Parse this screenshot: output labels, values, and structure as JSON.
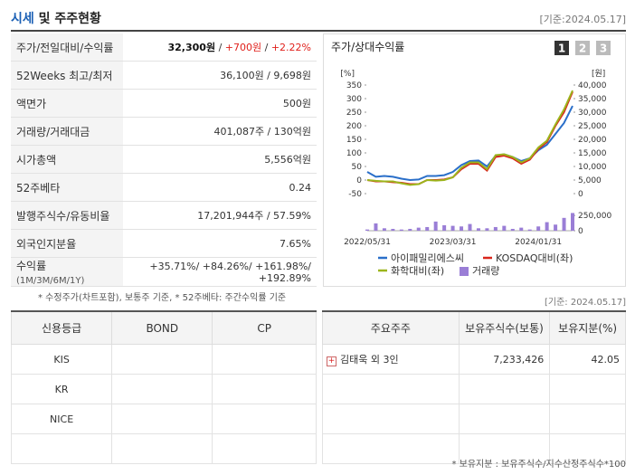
{
  "header": {
    "title": "시세",
    "title_rest": "및 주주현황",
    "date": "[기준:2024.05.17]"
  },
  "summary": {
    "rows": [
      {
        "label": "주가/전일대비/수익률",
        "value": [
          "32,300원",
          " / ",
          "+700원",
          " / ",
          "+2.22%"
        ]
      },
      {
        "label": "52Weeks 최고/최저",
        "value": "36,100원 / 9,698원"
      },
      {
        "label": "액면가",
        "value": "500원"
      },
      {
        "label": "거래량/거래대금",
        "value": "401,087주 / 130억원"
      },
      {
        "label": "시가총액",
        "value": "5,556억원"
      },
      {
        "label": "52주베타",
        "value": "0.24"
      },
      {
        "label": "발행주식수/유동비율",
        "value": "17,201,944주 / 57.59%"
      },
      {
        "label": "외국인지분율",
        "value": "7.65%"
      },
      {
        "label": "수익률",
        "label_note": "(1M/3M/6M/1Y)",
        "value": "+35.71%/ +84.26%/ +161.98%/ +192.89%"
      }
    ],
    "note": "* 수정주가(차트포함), 보통주 기준, * 52주베타: 주간수익률 기준"
  },
  "chart": {
    "type": "line",
    "title": "주가/상대수익률",
    "pages": [
      "1",
      "2",
      "3"
    ],
    "ylabel": "[%]",
    "y2label": "[원]",
    "categories": [
      "2022/05/31",
      null,
      null,
      null,
      null,
      null,
      null,
      null,
      null,
      null,
      "2023/03/31",
      null,
      null,
      null,
      null,
      null,
      null,
      null,
      null,
      null,
      "2024/01/31",
      null,
      null,
      null,
      null
    ],
    "ylim": [
      -50,
      350
    ],
    "yticks": [
      -50,
      0,
      50,
      100,
      150,
      200,
      250,
      300,
      350
    ],
    "y2lim": [
      0,
      40000
    ],
    "y2ticks": [
      0,
      {
        "value": 5000,
        "label": "5,000"
      },
      {
        "value": 10000,
        "label": "10,000"
      },
      {
        "value": 15000,
        "label": "15,000"
      },
      {
        "value": 20000,
        "label": "20,000"
      },
      {
        "value": 25000,
        "label": "25,000"
      },
      {
        "value": 30000,
        "label": "30,000"
      },
      {
        "value": 35000,
        "label": "35,000"
      },
      {
        "value": 40000,
        "label": "40,000"
      }
    ],
    "series": [
      {
        "name": "아이패밀리에스씨",
        "color": "#2a6fc9",
        "axis": "y2",
        "values": [
          8000,
          6200,
          6500,
          6200,
          5500,
          5000,
          5200,
          6500,
          6500,
          6800,
          8000,
          10500,
          12000,
          12200,
          10000,
          14000,
          14500,
          13500,
          12000,
          13000,
          16000,
          18000,
          22000,
          26000,
          32300
        ]
      },
      {
        "name": "KOSDAQ대비(좌)",
        "color": "#d9261c",
        "values": [
          0,
          -5,
          -5,
          -8,
          -10,
          -15,
          -15,
          0,
          0,
          2,
          10,
          40,
          60,
          60,
          35,
          85,
          90,
          80,
          60,
          75,
          115,
          140,
          200,
          250,
          325
        ]
      },
      {
        "name": "화학대비(좌)",
        "color": "#9cb51c",
        "values": [
          0,
          -3,
          -5,
          -5,
          -12,
          -18,
          -15,
          0,
          -2,
          0,
          10,
          45,
          65,
          65,
          40,
          92,
          95,
          85,
          65,
          80,
          120,
          145,
          205,
          260,
          330
        ]
      }
    ],
    "volume": {
      "name": "거래량",
      "color": "#9a7ed6",
      "ylim": [
        0,
        400000
      ],
      "yticks": [
        0,
        {
          "value": 250000,
          "label": "250,000"
        }
      ],
      "values": [
        20000,
        120000,
        40000,
        30000,
        20000,
        30000,
        50000,
        60000,
        150000,
        90000,
        80000,
        70000,
        110000,
        40000,
        40000,
        60000,
        80000,
        30000,
        50000,
        20000,
        70000,
        140000,
        100000,
        210000,
        290000
      ]
    }
  },
  "credit": {
    "headers": [
      "신용등급",
      "BOND",
      "CP"
    ],
    "rows": [
      "KIS",
      "KR",
      "NICE"
    ]
  },
  "holders": {
    "date": "[기준: 2024.05.17]",
    "headers": [
      "주요주주",
      "보유주식수(보통)",
      "보유지분(%)"
    ],
    "rows": [
      [
        "김태욱 외 3인",
        "7,233,426",
        "42.05"
      ]
    ],
    "note": "* 보유지분 : 보유주식수/지수산정주식수*100"
  }
}
